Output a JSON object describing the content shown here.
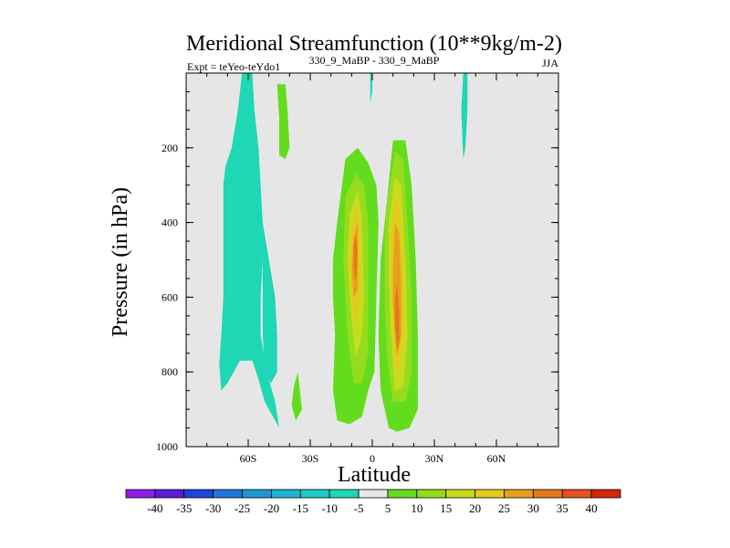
{
  "chart_data": {
    "type": "contour",
    "title": "Meridional Streamfunction (10**9kg/m-2)",
    "subtitle_left": "Expt = teYeo-teYdo1",
    "subtitle_center": "330_9_MaBP - 330_9_MaBP",
    "subtitle_right": "JJA",
    "xlabel": "Latitude",
    "ylabel": "Pressure (in hPa)",
    "xlim": [
      -90,
      90
    ],
    "ylim": [
      1000,
      0
    ],
    "x_ticks": [
      {
        "value": -60,
        "label": "60S"
      },
      {
        "value": -30,
        "label": "30S"
      },
      {
        "value": 0,
        "label": "0"
      },
      {
        "value": 30,
        "label": "30N"
      },
      {
        "value": 60,
        "label": "60N"
      }
    ],
    "y_ticks": [
      {
        "value": 200,
        "label": "200"
      },
      {
        "value": 400,
        "label": "400"
      },
      {
        "value": 600,
        "label": "600"
      },
      {
        "value": 800,
        "label": "800"
      },
      {
        "value": 1000,
        "label": "1000"
      }
    ],
    "background_color": "#e6e6e6",
    "colorbar": {
      "levels": [
        "-40",
        "-35",
        "-30",
        "-25",
        "-20",
        "-15",
        "-10",
        "-5",
        "5",
        "10",
        "15",
        "20",
        "25",
        "30",
        "35",
        "40"
      ],
      "colors": [
        "#8e1ee8",
        "#5a1ed6",
        "#1e46dc",
        "#1e78dc",
        "#1e96d2",
        "#1eb4d2",
        "#1ec8c8",
        "#1ed7b4",
        "#e6e6e6",
        "#64dc1e",
        "#96dc1e",
        "#c8dc1e",
        "#e6c81e",
        "#e6a01e",
        "#e6781e",
        "#e6501e",
        "#d2280a"
      ]
    },
    "contours": [
      {
        "name": "neg-cell-southern",
        "color": "#1ed7b4",
        "points": [
          [
            -63,
            0
          ],
          [
            -58,
            0
          ],
          [
            -57,
            100
          ],
          [
            -55,
            200
          ],
          [
            -54,
            300
          ],
          [
            -53,
            400
          ],
          [
            -53,
            500
          ],
          [
            -54,
            600
          ],
          [
            -54,
            700
          ],
          [
            -51,
            800
          ],
          [
            -47,
            880
          ],
          [
            -45,
            950
          ],
          [
            -47,
            930
          ],
          [
            -52,
            880
          ],
          [
            -55,
            820
          ],
          [
            -58,
            770
          ],
          [
            -64,
            770
          ],
          [
            -70,
            830
          ],
          [
            -73,
            850
          ],
          [
            -74,
            780
          ],
          [
            -73,
            700
          ],
          [
            -72,
            600
          ],
          [
            -72,
            500
          ],
          [
            -72,
            400
          ],
          [
            -72,
            300
          ],
          [
            -71,
            250
          ],
          [
            -68,
            200
          ],
          [
            -65,
            100
          ]
        ]
      },
      {
        "name": "neg-cell-strip",
        "color": "#1ed7b4",
        "points": [
          [
            -53,
            400
          ],
          [
            -50,
            500
          ],
          [
            -47,
            600
          ],
          [
            -46,
            700
          ],
          [
            -46,
            800
          ],
          [
            -49,
            830
          ],
          [
            -52,
            800
          ],
          [
            -53,
            700
          ],
          [
            -53,
            600
          ],
          [
            -53,
            500
          ]
        ]
      },
      {
        "name": "neg-sliver-eq",
        "color": "#1ed7b4",
        "points": [
          [
            -1,
            0
          ],
          [
            0,
            0
          ],
          [
            0,
            50
          ],
          [
            -1,
            80
          ]
        ]
      },
      {
        "name": "neg-sliver-nh",
        "color": "#1ed7b4",
        "points": [
          [
            44,
            0
          ],
          [
            46,
            0
          ],
          [
            46,
            100
          ],
          [
            45,
            200
          ],
          [
            44,
            230
          ],
          [
            43,
            100
          ]
        ]
      },
      {
        "name": "pos-upper-sh",
        "color": "#64dc1e",
        "points": [
          [
            -46,
            30
          ],
          [
            -42,
            30
          ],
          [
            -41,
            100
          ],
          [
            -40,
            200
          ],
          [
            -42,
            230
          ],
          [
            -45,
            220
          ],
          [
            -45,
            120
          ]
        ]
      },
      {
        "name": "pos-lower-sh",
        "color": "#64dc1e",
        "points": [
          [
            -38,
            840
          ],
          [
            -36,
            800
          ],
          [
            -34,
            900
          ],
          [
            -37,
            930
          ],
          [
            -39,
            890
          ]
        ]
      },
      {
        "name": "pos-cell-left",
        "color": "#64dc1e",
        "points": [
          [
            -17,
            400
          ],
          [
            -13,
            230
          ],
          [
            -7,
            200
          ],
          [
            -2,
            240
          ],
          [
            2,
            300
          ],
          [
            3,
            400
          ],
          [
            2,
            600
          ],
          [
            1,
            800
          ],
          [
            -2,
            850
          ],
          [
            -5,
            920
          ],
          [
            -11,
            940
          ],
          [
            -17,
            930
          ],
          [
            -19,
            850
          ],
          [
            -18,
            700
          ],
          [
            -19,
            600
          ],
          [
            -19,
            500
          ]
        ]
      },
      {
        "name": "pos-cell-right",
        "color": "#64dc1e",
        "points": [
          [
            6,
            400
          ],
          [
            10,
            180
          ],
          [
            16,
            180
          ],
          [
            19,
            300
          ],
          [
            21,
            500
          ],
          [
            22,
            700
          ],
          [
            22,
            900
          ],
          [
            18,
            950
          ],
          [
            12,
            960
          ],
          [
            8,
            950
          ],
          [
            4,
            850
          ],
          [
            3,
            700
          ],
          [
            4,
            500
          ]
        ]
      },
      {
        "name": "lvl10-left",
        "color": "#96dc1e",
        "points": [
          [
            -13,
            330
          ],
          [
            -8,
            270
          ],
          [
            -4,
            300
          ],
          [
            -2,
            400
          ],
          [
            -2,
            600
          ],
          [
            -2,
            750
          ],
          [
            -5,
            830
          ],
          [
            -9,
            830
          ],
          [
            -12,
            700
          ],
          [
            -14,
            500
          ]
        ]
      },
      {
        "name": "lvl10-right",
        "color": "#96dc1e",
        "points": [
          [
            7,
            350
          ],
          [
            11,
            210
          ],
          [
            15,
            230
          ],
          [
            17,
            400
          ],
          [
            19,
            600
          ],
          [
            19,
            800
          ],
          [
            16,
            880
          ],
          [
            10,
            880
          ],
          [
            7,
            750
          ],
          [
            6,
            600
          ],
          [
            6,
            450
          ]
        ]
      },
      {
        "name": "lvl15-left",
        "color": "#c8dc1e",
        "points": [
          [
            -11,
            380
          ],
          [
            -7,
            310
          ],
          [
            -5,
            400
          ],
          [
            -4,
            600
          ],
          [
            -5,
            700
          ],
          [
            -8,
            760
          ],
          [
            -10,
            660
          ],
          [
            -12,
            500
          ]
        ]
      },
      {
        "name": "lvl15-right",
        "color": "#c8dc1e",
        "points": [
          [
            8,
            400
          ],
          [
            11,
            280
          ],
          [
            14,
            300
          ],
          [
            16,
            500
          ],
          [
            17,
            700
          ],
          [
            15,
            840
          ],
          [
            11,
            850
          ],
          [
            9,
            700
          ],
          [
            8,
            550
          ]
        ]
      },
      {
        "name": "lvl20-left",
        "color": "#e6c81e",
        "points": [
          [
            -10,
            410
          ],
          [
            -7,
            350
          ],
          [
            -6,
            450
          ],
          [
            -6,
            600
          ],
          [
            -8,
            680
          ],
          [
            -10,
            600
          ],
          [
            -11,
            500
          ]
        ]
      },
      {
        "name": "lvl20-right",
        "color": "#e6c81e",
        "points": [
          [
            9,
            450
          ],
          [
            11,
            330
          ],
          [
            13,
            360
          ],
          [
            15,
            520
          ],
          [
            15,
            700
          ],
          [
            13,
            800
          ],
          [
            11,
            780
          ],
          [
            10,
            650
          ],
          [
            9,
            550
          ]
        ]
      },
      {
        "name": "lvl25-left",
        "color": "#e6a01e",
        "points": [
          [
            -9,
            440
          ],
          [
            -7,
            400
          ],
          [
            -7,
            500
          ],
          [
            -7,
            580
          ],
          [
            -9,
            600
          ],
          [
            -10,
            520
          ]
        ]
      },
      {
        "name": "lvl25-right",
        "color": "#e6a01e",
        "points": [
          [
            10,
            520
          ],
          [
            11,
            400
          ],
          [
            13,
            430
          ],
          [
            14,
            560
          ],
          [
            14,
            700
          ],
          [
            12,
            760
          ],
          [
            11,
            700
          ],
          [
            10,
            620
          ]
        ]
      },
      {
        "name": "lvl30-left",
        "color": "#e6781e",
        "points": [
          [
            -9,
            460
          ],
          [
            -8,
            430
          ],
          [
            -7,
            480
          ],
          [
            -8,
            560
          ],
          [
            -9,
            520
          ]
        ]
      },
      {
        "name": "lvl30-right",
        "color": "#e6781e",
        "points": [
          [
            11,
            600
          ],
          [
            12,
            560
          ],
          [
            13,
            640
          ],
          [
            13,
            720
          ],
          [
            12,
            740
          ],
          [
            11,
            680
          ]
        ]
      }
    ]
  }
}
